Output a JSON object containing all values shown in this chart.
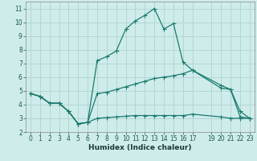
{
  "background_color": "#ceecea",
  "grid_color": "#aed4d0",
  "line_color": "#1a7a6e",
  "xlabel": "Humidex (Indice chaleur)",
  "xlim": [
    -0.5,
    23.5
  ],
  "ylim": [
    2,
    11.5
  ],
  "xticks": [
    0,
    1,
    2,
    3,
    4,
    5,
    6,
    7,
    8,
    9,
    10,
    11,
    12,
    13,
    14,
    15,
    16,
    17,
    19,
    20,
    21,
    22,
    23
  ],
  "yticks": [
    2,
    3,
    4,
    5,
    6,
    7,
    8,
    9,
    10,
    11
  ],
  "line1_x": [
    0,
    1,
    2,
    3,
    4,
    5,
    6,
    7,
    8,
    9,
    10,
    11,
    12,
    13,
    14,
    15,
    16,
    17,
    20,
    21,
    22,
    23
  ],
  "line1_y": [
    4.8,
    4.6,
    4.1,
    4.1,
    3.5,
    2.6,
    2.7,
    7.2,
    7.5,
    7.9,
    9.5,
    10.1,
    10.5,
    11.0,
    9.5,
    9.9,
    7.1,
    6.5,
    5.4,
    5.1,
    3.5,
    3.0
  ],
  "line2_x": [
    0,
    1,
    2,
    3,
    4,
    5,
    6,
    7,
    8,
    9,
    10,
    11,
    12,
    13,
    14,
    15,
    16,
    17,
    20,
    21,
    22,
    23
  ],
  "line2_y": [
    4.8,
    4.6,
    4.1,
    4.1,
    3.5,
    2.6,
    2.7,
    4.8,
    4.9,
    5.1,
    5.3,
    5.5,
    5.7,
    5.9,
    6.0,
    6.1,
    6.25,
    6.5,
    5.2,
    5.1,
    3.1,
    3.0
  ],
  "line3_x": [
    0,
    1,
    2,
    3,
    4,
    5,
    6,
    7,
    8,
    9,
    10,
    11,
    12,
    13,
    14,
    15,
    16,
    17,
    20,
    21,
    22,
    23
  ],
  "line3_y": [
    4.8,
    4.6,
    4.1,
    4.1,
    3.5,
    2.6,
    2.7,
    3.0,
    3.05,
    3.1,
    3.15,
    3.2,
    3.2,
    3.2,
    3.2,
    3.2,
    3.2,
    3.3,
    3.1,
    3.0,
    3.0,
    3.0
  ],
  "tick_fontsize": 5.5,
  "xlabel_fontsize": 6.5
}
